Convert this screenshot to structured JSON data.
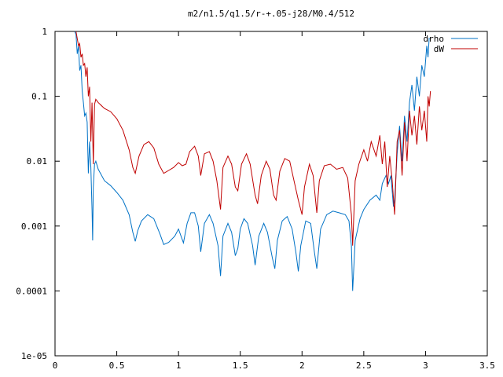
{
  "chart_data": {
    "type": "line",
    "title": "m2/n1.5/q1.5/r-+.05-j28/M0.4/512",
    "xlabel": "",
    "ylabel": "",
    "xlim": [
      0,
      3.5
    ],
    "ylim": [
      1e-05,
      1
    ],
    "yscale": "log",
    "grid": false,
    "legend_position": "top-right",
    "x_ticks": [
      {
        "value": 0,
        "label": "0"
      },
      {
        "value": 0.5,
        "label": "0.5"
      },
      {
        "value": 1,
        "label": "1"
      },
      {
        "value": 1.5,
        "label": "1.5"
      },
      {
        "value": 2,
        "label": "2"
      },
      {
        "value": 2.5,
        "label": "2.5"
      },
      {
        "value": 3,
        "label": "3"
      },
      {
        "value": 3.5,
        "label": "3.5"
      }
    ],
    "y_ticks": [
      {
        "value": 1,
        "label": "1"
      },
      {
        "value": 0.1,
        "label": "0.1"
      },
      {
        "value": 0.01,
        "label": "0.01"
      },
      {
        "value": 0.001,
        "label": "0.001"
      },
      {
        "value": 0.0001,
        "label": "0.0001"
      },
      {
        "value": 1e-05,
        "label": "1e-05"
      }
    ],
    "series": [
      {
        "name": "drho",
        "color": "#0072c6",
        "points": [
          [
            0.16,
            1.0
          ],
          [
            0.17,
            0.9
          ],
          [
            0.18,
            0.45
          ],
          [
            0.19,
            0.6
          ],
          [
            0.2,
            0.25
          ],
          [
            0.21,
            0.3
          ],
          [
            0.22,
            0.12
          ],
          [
            0.23,
            0.08
          ],
          [
            0.24,
            0.05
          ],
          [
            0.25,
            0.055
          ],
          [
            0.26,
            0.04
          ],
          [
            0.27,
            0.0065
          ],
          [
            0.28,
            0.02
          ],
          [
            0.29,
            0.008
          ],
          [
            0.3,
            0.0018
          ],
          [
            0.305,
            0.0006
          ],
          [
            0.31,
            0.004
          ],
          [
            0.32,
            0.009
          ],
          [
            0.33,
            0.01
          ],
          [
            0.35,
            0.0075
          ],
          [
            0.4,
            0.005
          ],
          [
            0.45,
            0.0042
          ],
          [
            0.5,
            0.0033
          ],
          [
            0.55,
            0.0025
          ],
          [
            0.6,
            0.0015
          ],
          [
            0.63,
            0.0008
          ],
          [
            0.65,
            0.00058
          ],
          [
            0.67,
            0.00085
          ],
          [
            0.7,
            0.0012
          ],
          [
            0.75,
            0.0015
          ],
          [
            0.8,
            0.0013
          ],
          [
            0.85,
            0.00075
          ],
          [
            0.88,
            0.00052
          ],
          [
            0.92,
            0.00056
          ],
          [
            0.97,
            0.0007
          ],
          [
            1.0,
            0.0009
          ],
          [
            1.02,
            0.0007
          ],
          [
            1.04,
            0.00055
          ],
          [
            1.07,
            0.0011
          ],
          [
            1.1,
            0.0016
          ],
          [
            1.13,
            0.0016
          ],
          [
            1.16,
            0.001
          ],
          [
            1.18,
            0.0004
          ],
          [
            1.21,
            0.0011
          ],
          [
            1.25,
            0.0015
          ],
          [
            1.28,
            0.0011
          ],
          [
            1.32,
            0.0005
          ],
          [
            1.34,
            0.00017
          ],
          [
            1.36,
            0.0007
          ],
          [
            1.4,
            0.0011
          ],
          [
            1.43,
            0.0008
          ],
          [
            1.46,
            0.00035
          ],
          [
            1.48,
            0.00045
          ],
          [
            1.5,
            0.0009
          ],
          [
            1.53,
            0.0013
          ],
          [
            1.56,
            0.0011
          ],
          [
            1.6,
            0.0005
          ],
          [
            1.62,
            0.00025
          ],
          [
            1.65,
            0.0007
          ],
          [
            1.69,
            0.0011
          ],
          [
            1.72,
            0.0008
          ],
          [
            1.76,
            0.00032
          ],
          [
            1.78,
            0.00022
          ],
          [
            1.8,
            0.0006
          ],
          [
            1.84,
            0.0012
          ],
          [
            1.88,
            0.0014
          ],
          [
            1.92,
            0.0009
          ],
          [
            1.95,
            0.0004
          ],
          [
            1.97,
            0.0002
          ],
          [
            1.99,
            0.0005
          ],
          [
            2.03,
            0.0012
          ],
          [
            2.07,
            0.0011
          ],
          [
            2.1,
            0.0004
          ],
          [
            2.12,
            0.00022
          ],
          [
            2.15,
            0.0009
          ],
          [
            2.2,
            0.0015
          ],
          [
            2.25,
            0.0017
          ],
          [
            2.3,
            0.0016
          ],
          [
            2.35,
            0.0015
          ],
          [
            2.38,
            0.0012
          ],
          [
            2.4,
            0.0005
          ],
          [
            2.41,
            0.0001
          ],
          [
            2.43,
            0.0006
          ],
          [
            2.47,
            0.0013
          ],
          [
            2.5,
            0.0018
          ],
          [
            2.55,
            0.0025
          ],
          [
            2.6,
            0.003
          ],
          [
            2.63,
            0.0025
          ],
          [
            2.65,
            0.0045
          ],
          [
            2.68,
            0.006
          ],
          [
            2.7,
            0.0045
          ],
          [
            2.72,
            0.006
          ],
          [
            2.74,
            0.002
          ],
          [
            2.75,
            0.0025
          ],
          [
            2.77,
            0.013
          ],
          [
            2.79,
            0.035
          ],
          [
            2.81,
            0.01
          ],
          [
            2.83,
            0.05
          ],
          [
            2.85,
            0.02
          ],
          [
            2.87,
            0.08
          ],
          [
            2.89,
            0.15
          ],
          [
            2.91,
            0.06
          ],
          [
            2.93,
            0.2
          ],
          [
            2.95,
            0.1
          ],
          [
            2.97,
            0.3
          ],
          [
            2.99,
            0.2
          ],
          [
            3.01,
            0.6
          ],
          [
            3.02,
            0.4
          ],
          [
            3.03,
            0.8
          ]
        ]
      },
      {
        "name": "dW",
        "color": "#c00000",
        "points": [
          [
            0.17,
            1.0
          ],
          [
            0.19,
            0.6
          ],
          [
            0.2,
            0.65
          ],
          [
            0.21,
            0.4
          ],
          [
            0.22,
            0.45
          ],
          [
            0.23,
            0.3
          ],
          [
            0.24,
            0.32
          ],
          [
            0.25,
            0.2
          ],
          [
            0.26,
            0.28
          ],
          [
            0.27,
            0.1
          ],
          [
            0.28,
            0.14
          ],
          [
            0.29,
            0.02
          ],
          [
            0.3,
            0.08
          ],
          [
            0.31,
            0.009
          ],
          [
            0.32,
            0.075
          ],
          [
            0.33,
            0.09
          ],
          [
            0.35,
            0.08
          ],
          [
            0.4,
            0.065
          ],
          [
            0.45,
            0.058
          ],
          [
            0.5,
            0.045
          ],
          [
            0.55,
            0.03
          ],
          [
            0.6,
            0.015
          ],
          [
            0.63,
            0.008
          ],
          [
            0.65,
            0.0065
          ],
          [
            0.68,
            0.012
          ],
          [
            0.72,
            0.018
          ],
          [
            0.76,
            0.02
          ],
          [
            0.8,
            0.016
          ],
          [
            0.84,
            0.009
          ],
          [
            0.88,
            0.0065
          ],
          [
            0.92,
            0.0072
          ],
          [
            0.96,
            0.008
          ],
          [
            1.0,
            0.0095
          ],
          [
            1.03,
            0.0085
          ],
          [
            1.06,
            0.009
          ],
          [
            1.09,
            0.014
          ],
          [
            1.13,
            0.017
          ],
          [
            1.16,
            0.012
          ],
          [
            1.18,
            0.006
          ],
          [
            1.21,
            0.013
          ],
          [
            1.25,
            0.014
          ],
          [
            1.28,
            0.01
          ],
          [
            1.31,
            0.005
          ],
          [
            1.34,
            0.0018
          ],
          [
            1.36,
            0.008
          ],
          [
            1.4,
            0.012
          ],
          [
            1.43,
            0.009
          ],
          [
            1.46,
            0.004
          ],
          [
            1.48,
            0.0035
          ],
          [
            1.51,
            0.009
          ],
          [
            1.55,
            0.013
          ],
          [
            1.58,
            0.009
          ],
          [
            1.62,
            0.003
          ],
          [
            1.64,
            0.0022
          ],
          [
            1.67,
            0.006
          ],
          [
            1.71,
            0.01
          ],
          [
            1.74,
            0.0075
          ],
          [
            1.77,
            0.003
          ],
          [
            1.79,
            0.0025
          ],
          [
            1.82,
            0.007
          ],
          [
            1.86,
            0.011
          ],
          [
            1.9,
            0.01
          ],
          [
            1.94,
            0.0045
          ],
          [
            1.97,
            0.0025
          ],
          [
            2.0,
            0.0015
          ],
          [
            2.02,
            0.004
          ],
          [
            2.06,
            0.009
          ],
          [
            2.09,
            0.006
          ],
          [
            2.12,
            0.0016
          ],
          [
            2.14,
            0.005
          ],
          [
            2.18,
            0.0085
          ],
          [
            2.23,
            0.009
          ],
          [
            2.28,
            0.0075
          ],
          [
            2.33,
            0.008
          ],
          [
            2.37,
            0.0055
          ],
          [
            2.4,
            0.0015
          ],
          [
            2.41,
            0.0005
          ],
          [
            2.43,
            0.005
          ],
          [
            2.46,
            0.009
          ],
          [
            2.5,
            0.015
          ],
          [
            2.53,
            0.01
          ],
          [
            2.56,
            0.02
          ],
          [
            2.6,
            0.012
          ],
          [
            2.63,
            0.025
          ],
          [
            2.65,
            0.009
          ],
          [
            2.67,
            0.02
          ],
          [
            2.69,
            0.004
          ],
          [
            2.71,
            0.012
          ],
          [
            2.73,
            0.005
          ],
          [
            2.75,
            0.0015
          ],
          [
            2.77,
            0.02
          ],
          [
            2.79,
            0.03
          ],
          [
            2.81,
            0.006
          ],
          [
            2.83,
            0.04
          ],
          [
            2.85,
            0.01
          ],
          [
            2.87,
            0.06
          ],
          [
            2.89,
            0.025
          ],
          [
            2.91,
            0.05
          ],
          [
            2.93,
            0.018
          ],
          [
            2.95,
            0.07
          ],
          [
            2.97,
            0.03
          ],
          [
            2.99,
            0.06
          ],
          [
            3.01,
            0.02
          ],
          [
            3.02,
            0.1
          ],
          [
            3.03,
            0.07
          ],
          [
            3.04,
            0.12
          ]
        ]
      }
    ]
  }
}
